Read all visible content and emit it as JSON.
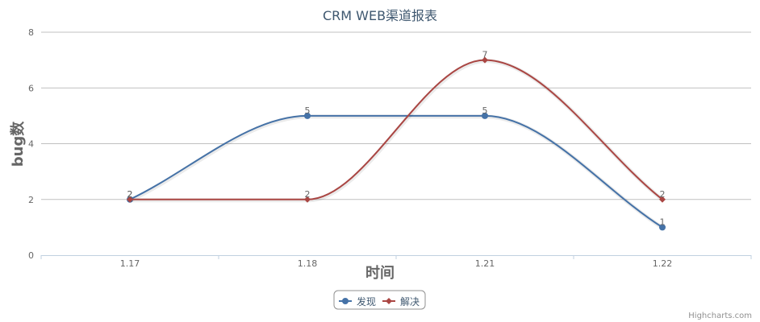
{
  "chart_data": {
    "type": "line",
    "title": "CRM WEB渠道报表",
    "xlabel": "时间",
    "ylabel": "bug数",
    "categories": [
      "1.17",
      "1.18",
      "1.21",
      "1.22"
    ],
    "ylim": [
      0,
      8
    ],
    "yticks": [
      "0",
      "2",
      "4",
      "6",
      "8"
    ],
    "grid": true,
    "smooth": true,
    "legend_position": "bottom-center",
    "series": [
      {
        "name": "发现",
        "values": [
          2,
          5,
          5,
          1
        ],
        "color": "#4572a7",
        "marker": "circle"
      },
      {
        "name": "解决",
        "values": [
          2,
          2,
          7,
          2
        ],
        "color": "#aa4643",
        "marker": "diamond"
      }
    ]
  },
  "credits": "Highcharts.com"
}
